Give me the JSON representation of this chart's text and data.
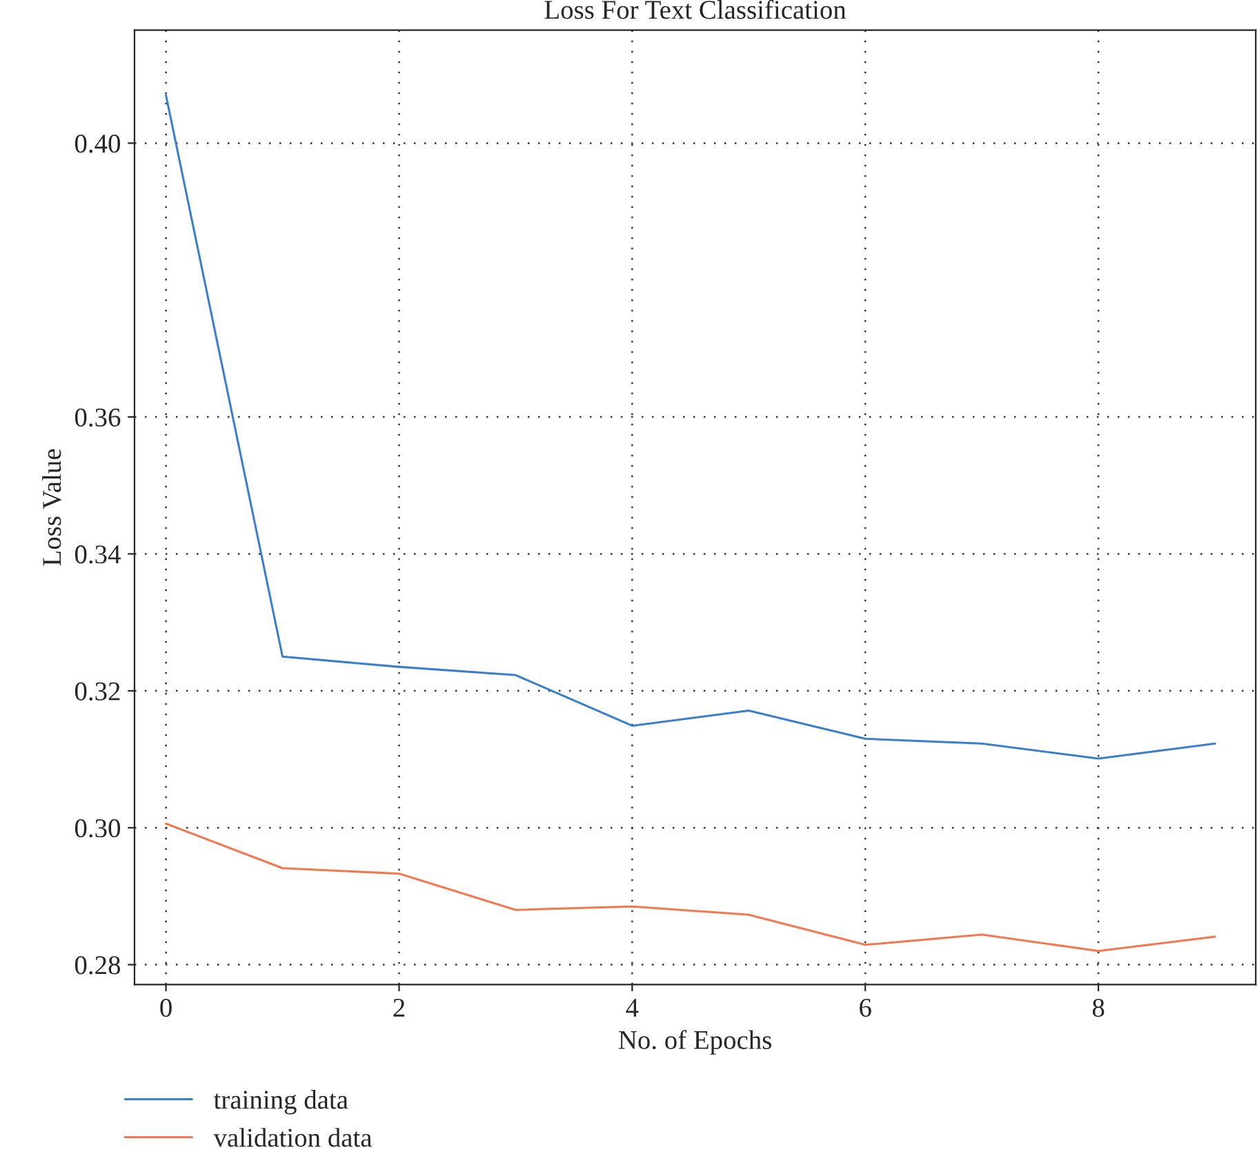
{
  "chart_data": {
    "type": "line",
    "title": "Loss For Text Classification",
    "xlabel": "No. of Epochs",
    "ylabel": "Loss Value",
    "x": [
      0,
      1,
      2,
      3,
      4,
      5,
      6,
      7,
      8,
      9
    ],
    "series": [
      {
        "name": "training data",
        "color": "#3a7fcf",
        "values": [
          0.407,
          0.325,
          0.3235,
          0.3223,
          0.3149,
          0.3171,
          0.313,
          0.3123,
          0.3101,
          0.3123
        ]
      },
      {
        "name": "validation data",
        "color": "#f4784f",
        "values": [
          0.3006,
          0.2941,
          0.2933,
          0.288,
          0.2885,
          0.2873,
          0.2829,
          0.2844,
          0.282,
          0.2841
        ]
      }
    ],
    "xlim": [
      -0.27,
      9.35
    ],
    "ylim": [
      0.2771,
      0.4165
    ],
    "xticks": [
      0,
      2,
      4,
      6,
      8
    ],
    "yticks": [
      {
        "value": 0.28,
        "label": "0.28"
      },
      {
        "value": 0.3,
        "label": "0.30"
      },
      {
        "value": 0.32,
        "label": "0.32"
      },
      {
        "value": 0.34,
        "label": "0.34"
      },
      {
        "value": 0.36,
        "label": "0.36"
      },
      {
        "value": 0.4,
        "label": "0.40"
      }
    ],
    "grid": true,
    "legend": "bottom",
    "line_style": "solid",
    "marker": "none"
  }
}
